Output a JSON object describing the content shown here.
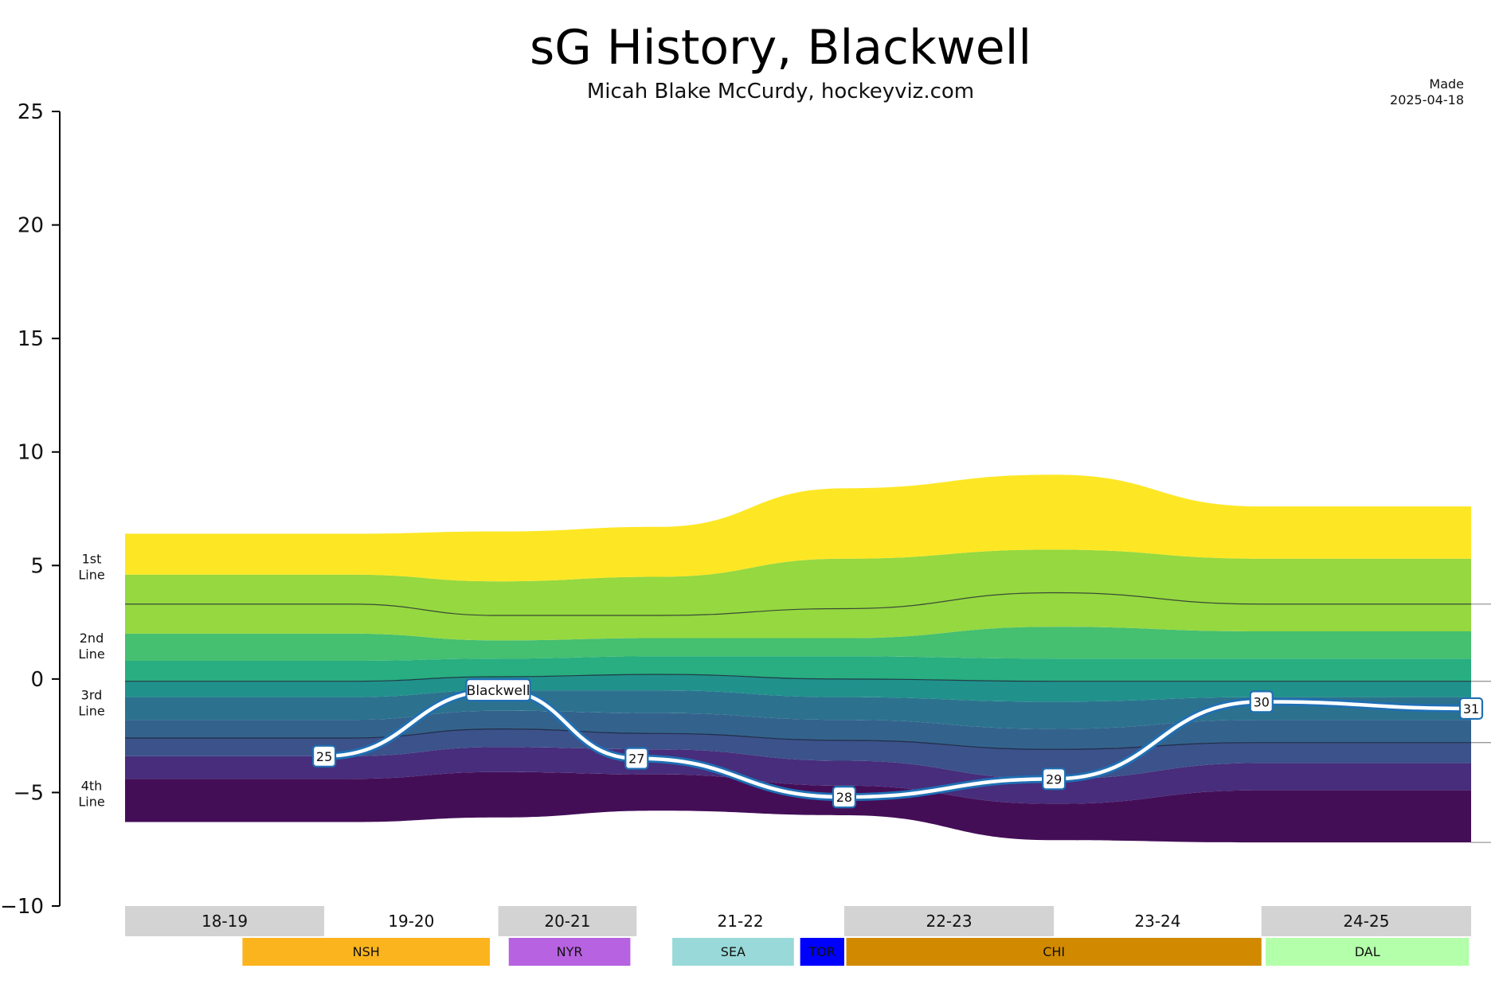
{
  "header": {
    "title": "sG History, Blackwell",
    "subtitle": "Micah Blake McCurdy, hockeyviz.com",
    "made_label": "Made",
    "made_date": "2025-04-18"
  },
  "line_labels": [
    {
      "top": "1st",
      "bottom": "Line",
      "y": 5
    },
    {
      "top": "2nd",
      "bottom": "Line",
      "y": 1.5
    },
    {
      "top": "3rd",
      "bottom": "Line",
      "y": -1
    },
    {
      "top": "4th",
      "bottom": "Line",
      "y": -5
    }
  ],
  "seasons": [
    {
      "label": "18-19",
      "shaded": true,
      "start": 0,
      "end": 0.95
    },
    {
      "label": "19-20",
      "shaded": false,
      "start": 0.95,
      "end": 1.78
    },
    {
      "label": "20-21",
      "shaded": true,
      "start": 1.78,
      "end": 2.44
    },
    {
      "label": "21-22",
      "shaded": false,
      "start": 2.44,
      "end": 3.43
    },
    {
      "label": "22-23",
      "shaded": true,
      "start": 3.43,
      "end": 4.43
    },
    {
      "label": "23-24",
      "shaded": false,
      "start": 4.43,
      "end": 5.42
    },
    {
      "label": "24-25",
      "shaded": true,
      "start": 5.42,
      "end": 6.42
    }
  ],
  "teams": [
    {
      "label": "NSH",
      "color": "#fbb41d",
      "text_color": "#222222",
      "start": 0.56,
      "end": 1.74
    },
    {
      "label": "NYR",
      "color": "#b762e0",
      "text_color": "#222222",
      "start": 1.83,
      "end": 2.41
    },
    {
      "label": "SEA",
      "color": "#99d9d9",
      "text_color": "#222222",
      "start": 2.61,
      "end": 3.19
    },
    {
      "label": "TOR",
      "color": "#0000ff",
      "text_color": "#ffffff",
      "start": 3.22,
      "end": 3.43
    },
    {
      "label": "CHI",
      "color": "#d18a00",
      "text_color": "#222222",
      "start": 3.44,
      "end": 5.42
    },
    {
      "label": "DAL",
      "color": "#b3ffaa",
      "text_color": "#222222",
      "start": 5.44,
      "end": 6.41
    }
  ],
  "chart_data": {
    "type": "area",
    "title": "sG History, Blackwell",
    "ylim": [
      -10,
      25
    ],
    "yticks": [
      -10,
      -5,
      0,
      5,
      10,
      15,
      20,
      25
    ],
    "xlim": [
      0,
      6.42
    ],
    "x": [
      0,
      1.07,
      1.78,
      2.54,
      3.43,
      4.43,
      5.42,
      6.42
    ],
    "band_colors": [
      "#440e57",
      "#472d7b",
      "#3b528b",
      "#2c728e",
      "#21918c",
      "#28ae80",
      "#5ec962",
      "#95d840",
      "#fde725"
    ],
    "band_boundaries": [
      [
        -6.3,
        -6.3,
        -6.1,
        -5.8,
        -6.0,
        -7.1,
        -7.2,
        -7.2
      ],
      [
        -4.4,
        -4.4,
        -4.1,
        -4.2,
        -4.7,
        -5.5,
        -4.9,
        -4.9
      ],
      [
        -3.4,
        -3.4,
        -3.0,
        -3.1,
        -3.6,
        -4.4,
        -3.7,
        -3.7
      ],
      [
        -2.6,
        -2.6,
        -2.2,
        -2.4,
        -2.7,
        -3.1,
        -2.8,
        -2.8
      ],
      [
        -1.8,
        -1.8,
        -1.4,
        -1.5,
        -1.8,
        -2.2,
        -1.8,
        -1.8
      ],
      [
        -0.8,
        -0.8,
        -0.5,
        -0.5,
        -0.8,
        -1.0,
        -0.8,
        -0.8
      ],
      [
        -0.1,
        -0.1,
        0.1,
        0.2,
        0.0,
        -0.1,
        -0.1,
        -0.1
      ],
      [
        0.8,
        0.8,
        0.9,
        1.0,
        1.0,
        0.9,
        0.9,
        0.9
      ],
      [
        2.0,
        2.0,
        1.7,
        1.8,
        1.8,
        2.3,
        2.1,
        2.1
      ],
      [
        3.3,
        3.3,
        2.8,
        2.8,
        3.1,
        3.8,
        3.3,
        3.3
      ],
      [
        4.6,
        4.6,
        4.3,
        4.5,
        5.3,
        5.7,
        5.3,
        5.3
      ],
      [
        6.4,
        6.4,
        6.5,
        6.7,
        8.4,
        9.0,
        7.6,
        7.6
      ]
    ],
    "line_boundaries": [
      {
        "name": "1st/2nd",
        "values": [
          3.3,
          3.3,
          2.8,
          2.8,
          3.1,
          3.8,
          3.3,
          3.3
        ]
      },
      {
        "name": "2nd/3rd",
        "values": [
          -0.1,
          -0.1,
          0.1,
          0.2,
          0.0,
          -0.1,
          -0.1,
          -0.1
        ]
      },
      {
        "name": "3rd/4th",
        "values": [
          -2.6,
          -2.6,
          -2.2,
          -2.4,
          -2.7,
          -3.1,
          -2.8,
          -2.8
        ]
      }
    ],
    "player": {
      "name": "Blackwell",
      "name_x": 1.78,
      "x": [
        0.95,
        1.78,
        2.44,
        3.43,
        4.43,
        5.42,
        6.42
      ],
      "y": [
        -3.4,
        -0.5,
        -3.5,
        -5.2,
        -4.4,
        -1.0,
        -1.3
      ],
      "ages": [
        "25",
        "",
        "27",
        "28",
        "29",
        "30",
        "31"
      ]
    },
    "right_ticks": [
      3.3,
      -0.1,
      -2.8,
      -7.2
    ]
  }
}
